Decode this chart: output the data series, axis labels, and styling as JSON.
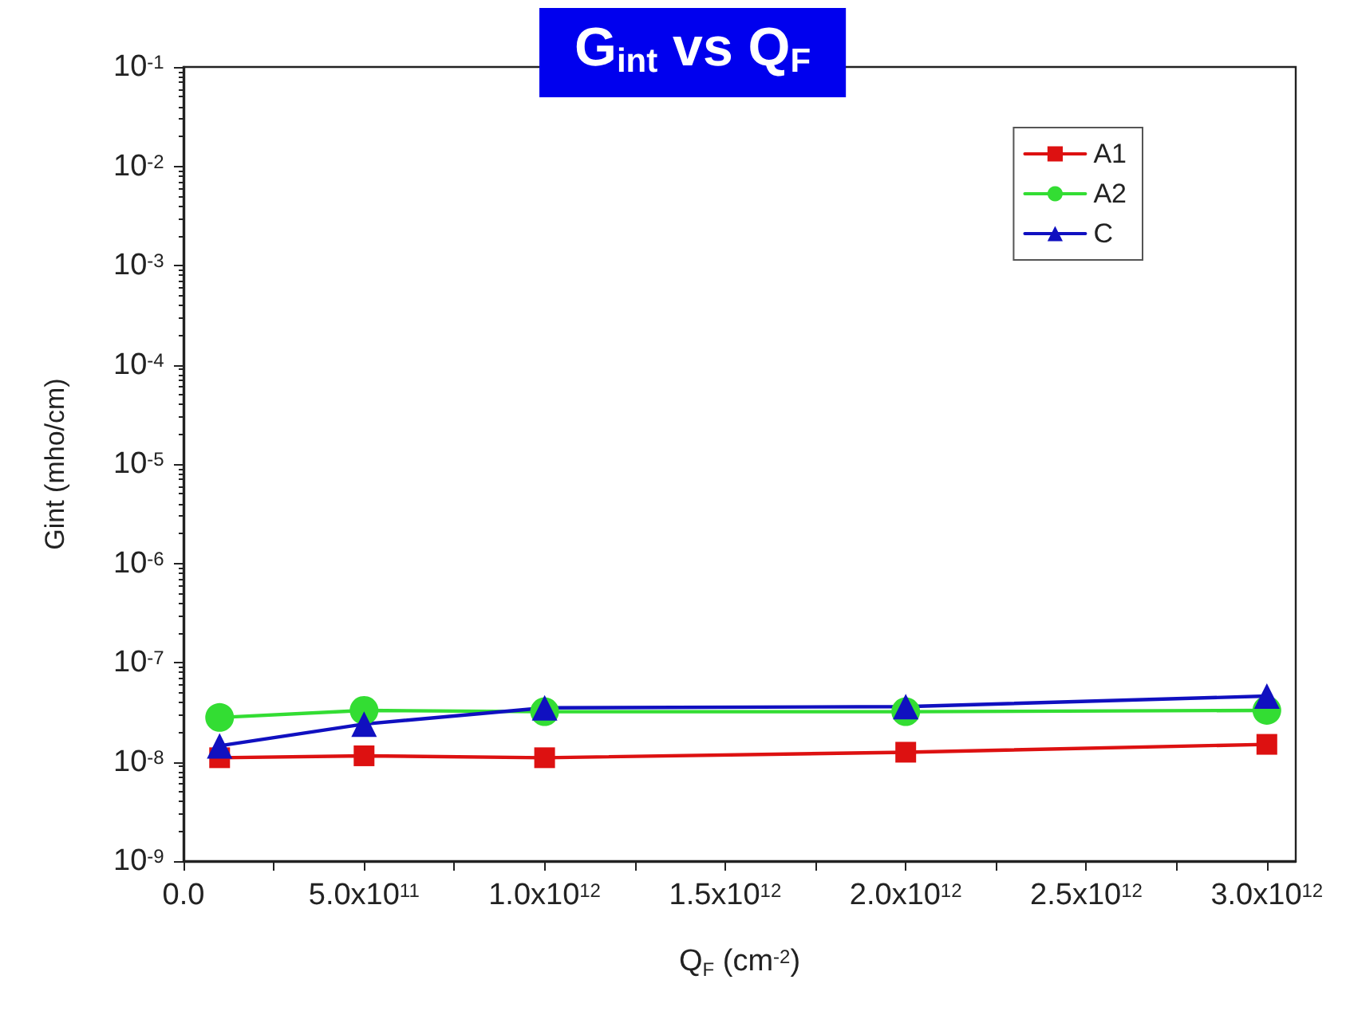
{
  "chart_data": {
    "type": "line",
    "title": "G$_{int}$ vs Q$_{F}$",
    "xlabel": "Q$_{F}$ (cm$^{-2}$)",
    "ylabel": "Gint (mho/cm)",
    "x": [
      100000000000.0,
      500000000000.0,
      1000000000000.0,
      2000000000000.0,
      3000000000000.0
    ],
    "series": [
      {
        "name": "A1",
        "color": "#dd1111",
        "marker": "square",
        "values": [
          1.1e-08,
          1.15e-08,
          1.1e-08,
          1.25e-08,
          1.5e-08
        ]
      },
      {
        "name": "A2",
        "color": "#33dd33",
        "marker": "circle",
        "values": [
          2.8e-08,
          3.3e-08,
          3.2e-08,
          3.2e-08,
          3.3e-08
        ]
      },
      {
        "name": "C",
        "color": "#1010c0",
        "marker": "triangle",
        "values": [
          1.45e-08,
          2.4e-08,
          3.5e-08,
          3.6e-08,
          4.6e-08
        ]
      }
    ],
    "log": "y",
    "ylim": [
      1e-09,
      0.1
    ],
    "yticks": [
      {
        "value": 1e-09,
        "label": "10$^{-9}$"
      },
      {
        "value": 1e-08,
        "label": "10$^{-8}$"
      },
      {
        "value": 1e-07,
        "label": "10$^{-7}$"
      },
      {
        "value": 1e-06,
        "label": "10$^{-6}$"
      },
      {
        "value": 1e-05,
        "label": "10$^{-5}$"
      },
      {
        "value": 0.0001,
        "label": "10$^{-4}$"
      },
      {
        "value": 0.001,
        "label": "10$^{-3}$"
      },
      {
        "value": 0.01,
        "label": "10$^{-2}$"
      },
      {
        "value": 0.1,
        "label": "10$^{-1}$"
      }
    ],
    "xlim": [
      0,
      3080000000000.0
    ],
    "xticks": [
      {
        "value": 0,
        "label": "0.0"
      },
      {
        "value": 250000000000.0,
        "label": null
      },
      {
        "value": 500000000000.0,
        "label": "5.0x10$^{11}$"
      },
      {
        "value": 750000000000.0,
        "label": null
      },
      {
        "value": 1000000000000.0,
        "label": "1.0x10$^{12}$"
      },
      {
        "value": 1250000000000.0,
        "label": null
      },
      {
        "value": 1500000000000.0,
        "label": "1.5x10$^{12}$"
      },
      {
        "value": 1750000000000.0,
        "label": null
      },
      {
        "value": 2000000000000.0,
        "label": "2.0x10$^{12}$"
      },
      {
        "value": 2250000000000.0,
        "label": null
      },
      {
        "value": 2500000000000.0,
        "label": "2.5x10$^{12}$"
      },
      {
        "value": 2750000000000.0,
        "label": null
      },
      {
        "value": 3000000000000.0,
        "label": "3.0x10$^{12}$"
      }
    ],
    "grid": false,
    "legend": "top right",
    "line_style": "solid"
  }
}
